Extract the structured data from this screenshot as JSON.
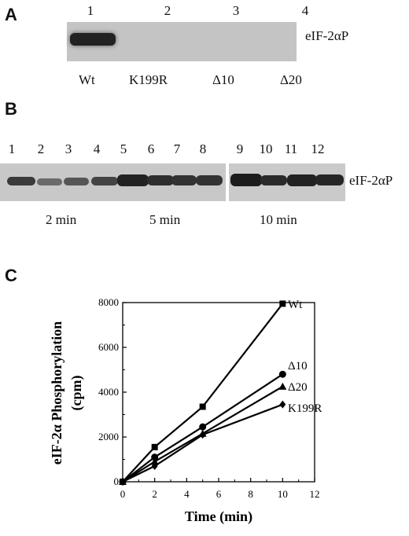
{
  "panel_a": {
    "label": "A",
    "lanes": [
      "1",
      "2",
      "3",
      "4"
    ],
    "band_label": "eIF-2αP",
    "samples": [
      "Wt",
      "K199R",
      "Δ10",
      "Δ20"
    ]
  },
  "panel_b": {
    "label": "B",
    "lanes": [
      "1",
      "2",
      "3",
      "4",
      "5",
      "6",
      "7",
      "8",
      "9",
      "10",
      "11",
      "12"
    ],
    "band_label": "eIF-2αP",
    "time_labels": [
      "2 min",
      "5 min",
      "10 min"
    ]
  },
  "panel_c": {
    "label": "C"
  },
  "chart_data": {
    "type": "line",
    "xlabel": "Time (min)",
    "ylabel_line1": "eIF-2α Phosphorylation",
    "ylabel_line2": "(cpm)",
    "xlim": [
      0,
      12
    ],
    "ylim": [
      0,
      8000
    ],
    "xticks": [
      0,
      2,
      4,
      6,
      8,
      10,
      12
    ],
    "yticks": [
      0,
      2000,
      4000,
      6000,
      8000
    ],
    "x": [
      0,
      2,
      5,
      10
    ],
    "grid": false,
    "series": [
      {
        "name": "Wt",
        "marker": "square",
        "values": [
          0,
          1550,
          3350,
          7950
        ]
      },
      {
        "name": "Δ10",
        "marker": "circle",
        "values": [
          0,
          1100,
          2450,
          4800
        ]
      },
      {
        "name": "Δ20",
        "marker": "triangle",
        "values": [
          0,
          900,
          2150,
          4250
        ]
      },
      {
        "name": "K199R",
        "marker": "diamond",
        "values": [
          0,
          700,
          2100,
          3450
        ]
      }
    ]
  }
}
